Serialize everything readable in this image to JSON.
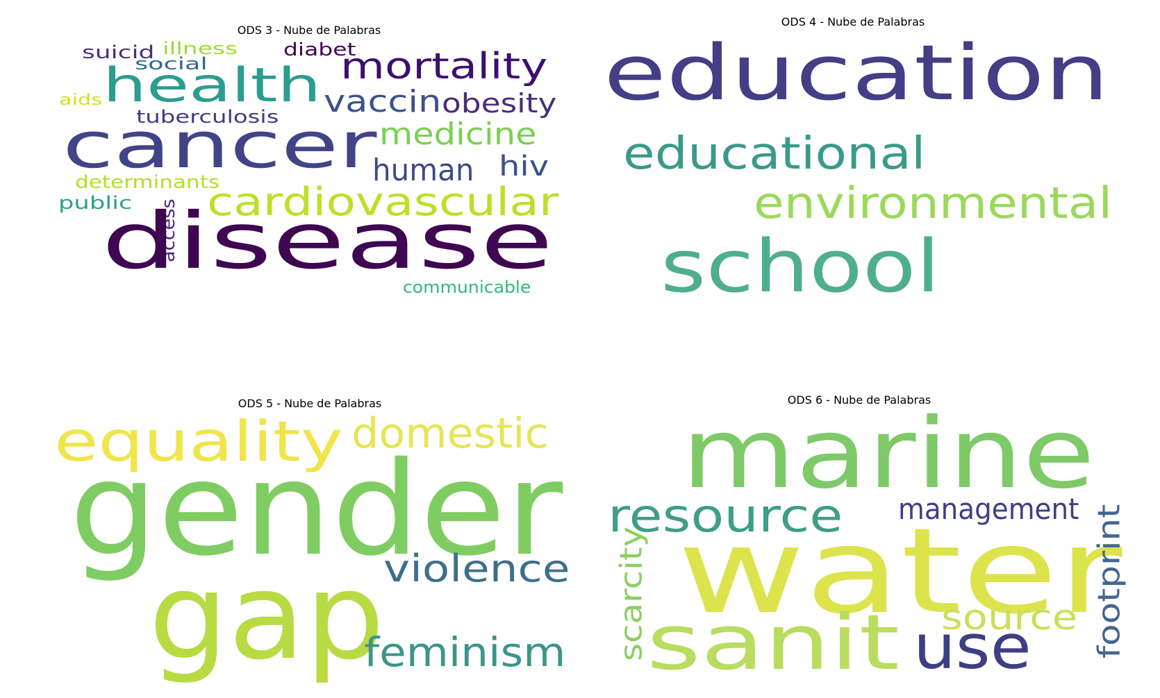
{
  "panels": [
    {
      "id": "ods3",
      "title": "ODS 3 - Nube de Palabras",
      "words": [
        {
          "text": "suicid",
          "color": "#46327e"
        },
        {
          "text": "illness",
          "color": "#a0da39"
        },
        {
          "text": "diabet",
          "color": "#440154"
        },
        {
          "text": "social",
          "color": "#31688e"
        },
        {
          "text": "health",
          "color": "#2a9d8f"
        },
        {
          "text": "mortality",
          "color": "#3b0f70"
        },
        {
          "text": "aids",
          "color": "#d0e11c"
        },
        {
          "text": "vaccin",
          "color": "#3b528b"
        },
        {
          "text": "obesity",
          "color": "#472d7b"
        },
        {
          "text": "tuberculosis",
          "color": "#443983"
        },
        {
          "text": "cancer",
          "color": "#414487"
        },
        {
          "text": "medicine",
          "color": "#7ad151"
        },
        {
          "text": "human",
          "color": "#3e4a89"
        },
        {
          "text": "hiv",
          "color": "#3b528b"
        },
        {
          "text": "determinants",
          "color": "#b5de2b"
        },
        {
          "text": "public",
          "color": "#2f9e87"
        },
        {
          "text": "access",
          "color": "#482878"
        },
        {
          "text": "cardiovascular",
          "color": "#bddf26"
        },
        {
          "text": "disease",
          "color": "#3e0751"
        },
        {
          "text": "communicable",
          "color": "#35b779"
        }
      ]
    },
    {
      "id": "ods4",
      "title": "ODS 4 - Nube de Palabras",
      "words": [
        {
          "text": "education",
          "color": "#433e85"
        },
        {
          "text": "educational",
          "color": "#3a9a8a"
        },
        {
          "text": "environmental",
          "color": "#9ad95a"
        },
        {
          "text": "school",
          "color": "#4fae8e"
        }
      ]
    },
    {
      "id": "ods5",
      "title": "ODS 5 - Nube de Palabras",
      "words": [
        {
          "text": "equality",
          "color": "#f0e54a"
        },
        {
          "text": "domestic",
          "color": "#e6e556"
        },
        {
          "text": "gender",
          "color": "#7fcd62"
        },
        {
          "text": "gap",
          "color": "#b8db44"
        },
        {
          "text": "violence",
          "color": "#3e6f8a"
        },
        {
          "text": "feminism",
          "color": "#3d958a"
        }
      ]
    },
    {
      "id": "ods6",
      "title": "ODS 6 - Nube de Palabras",
      "words": [
        {
          "text": "marine",
          "color": "#7ec968"
        },
        {
          "text": "resource",
          "color": "#3f9e85"
        },
        {
          "text": "management",
          "color": "#3f3f82"
        },
        {
          "text": "water",
          "color": "#dde34d"
        },
        {
          "text": "scarcity",
          "color": "#8ccf62"
        },
        {
          "text": "footprint",
          "color": "#44678f"
        },
        {
          "text": "source",
          "color": "#c8e059"
        },
        {
          "text": "sanit",
          "color": "#b9dd5e"
        },
        {
          "text": "use",
          "color": "#3d3f84"
        }
      ]
    }
  ]
}
